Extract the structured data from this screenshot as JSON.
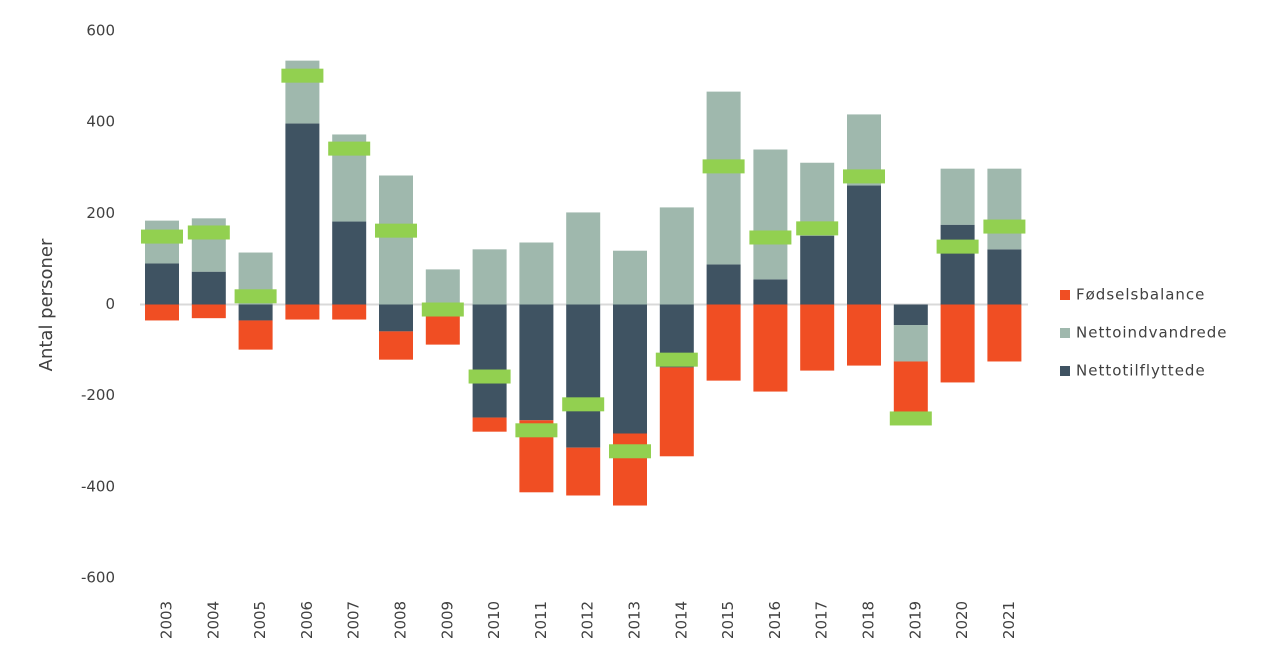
{
  "chart_data": {
    "type": "bar",
    "stacked": true,
    "y_label": "Antal personer",
    "categories": [
      "2003",
      "2004",
      "2005",
      "2006",
      "2007",
      "2008",
      "2009",
      "2010",
      "2011",
      "2012",
      "2013",
      "2014",
      "2015",
      "2016",
      "2017",
      "2018",
      "2019",
      "2020",
      "2021"
    ],
    "series": [
      {
        "name": "Nettotilflyttede",
        "color": "#3f5362",
        "values": [
          90,
          72,
          -35,
          397,
          182,
          -59,
          -25,
          -248,
          -254,
          -314,
          -283,
          -138,
          88,
          55,
          151,
          261,
          -45,
          175,
          121
        ]
      },
      {
        "name": "Nettoindvandrede",
        "color": "#9fb8ad",
        "values": [
          94,
          117,
          114,
          138,
          191,
          283,
          77,
          121,
          136,
          202,
          118,
          213,
          379,
          285,
          160,
          156,
          -80,
          123,
          177
        ]
      },
      {
        "name": "Fødselsbalance",
        "color": "#f04e23",
        "values": [
          -35,
          -30,
          -64,
          -33,
          -33,
          -62,
          -63,
          -31,
          -158,
          -105,
          -158,
          -195,
          -167,
          -191,
          -145,
          -134,
          -125,
          -171,
          -125
        ]
      }
    ],
    "markers": {
      "color": "#92d050",
      "values": [
        149,
        158,
        18,
        502,
        342,
        162,
        -11,
        -158,
        -276,
        -219,
        -322,
        -121,
        303,
        147,
        167,
        281,
        -250,
        127,
        171
      ]
    },
    "legend_order": [
      2,
      1,
      0
    ],
    "ylim": [
      -600,
      600
    ],
    "yticks": [
      -600,
      -400,
      -200,
      0,
      200,
      400,
      600
    ]
  }
}
